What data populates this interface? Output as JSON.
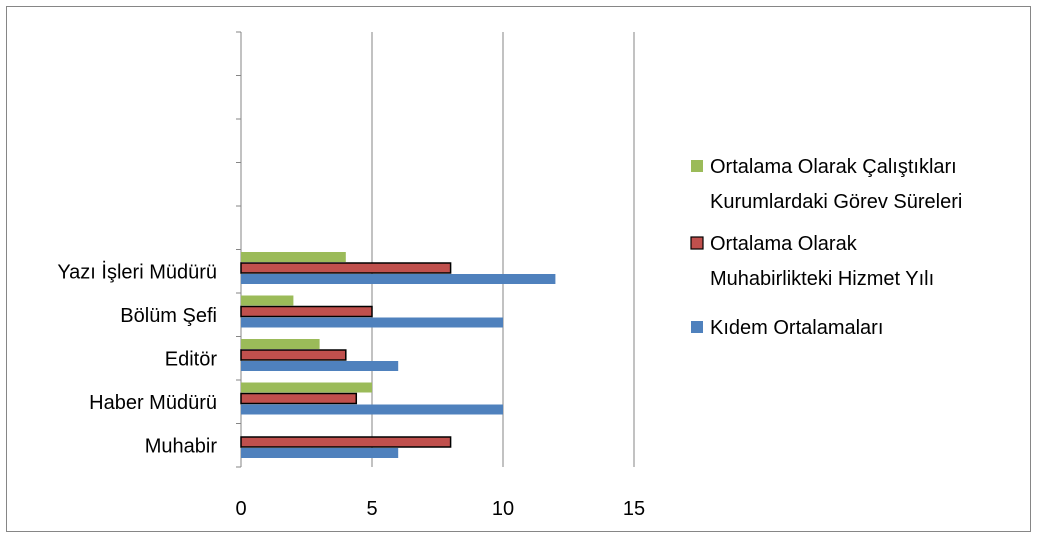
{
  "chart_data": {
    "type": "bar",
    "orientation": "horizontal",
    "categories": [
      "Muhabir",
      "Haber Müdürü",
      "Editör",
      "Bölüm Şefi",
      "Yazı İşleri Müdürü"
    ],
    "series": [
      {
        "name": "Kıdem Ortalamaları",
        "color": "#4f81bd",
        "values": [
          6,
          10,
          6,
          10,
          12
        ]
      },
      {
        "name": "Ortalama Olarak Muhabirlikteki Hizmet Yılı",
        "name_lines": [
          "Ortalama Olarak",
          "Muhabirlikteki Hizmet Yılı"
        ],
        "color": "#c0504d",
        "values": [
          8,
          4.4,
          4,
          5,
          8
        ]
      },
      {
        "name": "Ortalama Olarak Çalıştıkları Kurumlardaki Görev Süreleri",
        "name_lines": [
          "Ortalama Olarak Çalıştıkları",
          "Kurumlardaki Görev Süreleri"
        ],
        "color": "#9bbb59",
        "values": [
          0,
          5,
          3,
          2,
          4
        ]
      }
    ],
    "x_ticks": [
      "0",
      "5",
      "10",
      "15"
    ],
    "xlim": [
      0,
      15
    ],
    "grid": "vertical",
    "legend_position": "right"
  }
}
